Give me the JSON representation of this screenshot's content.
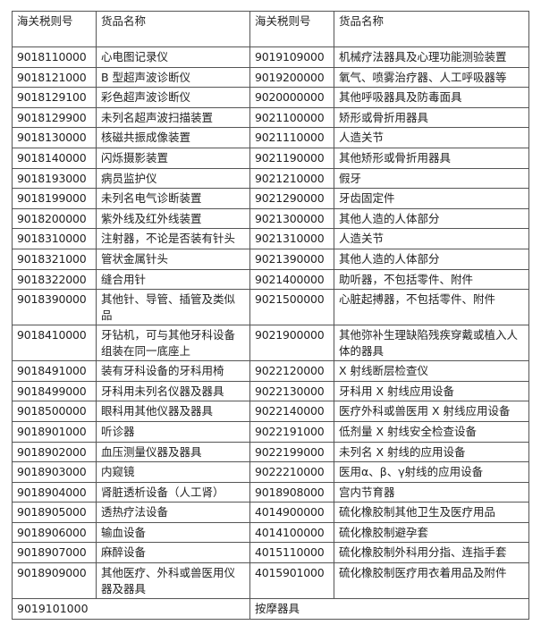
{
  "headers": [
    "海关税则号",
    "货品名称",
    "海关税则号",
    "货品名称"
  ],
  "rows": [
    [
      "9018110000",
      "心电图记录仪",
      "9019109000",
      "机械疗法器具及心理功能测验装置"
    ],
    [
      "9018121000",
      "B 型超声波诊断仪",
      "9019200000",
      "氧气、喷雾治疗器、人工呼吸器等"
    ],
    [
      "9018129100",
      "彩色超声波诊断仪",
      "9020000000",
      "其他呼吸器具及防毒面具"
    ],
    [
      "9018129900",
      "未列名超声波扫描装置",
      "9021100000",
      "矫形或骨折用器具"
    ],
    [
      "9018130000",
      "核磁共振成像装置",
      "9021110000",
      "人造关节"
    ],
    [
      "9018140000",
      "闪烁摄影装置",
      "9021190000",
      "其他矫形或骨折用器具"
    ],
    [
      "9018193000",
      "病员监护仪",
      "9021210000",
      "假牙"
    ],
    [
      "9018199000",
      "未列名电气诊断装置",
      "9021290000",
      "牙齿固定件"
    ],
    [
      "9018200000",
      "紫外线及红外线装置",
      "9021300000",
      "其他人造的人体部分"
    ],
    [
      "9018310000",
      "注射器，不论是否装有针头",
      "9021310000",
      "人造关节"
    ],
    [
      "9018321000",
      "管状金属针头",
      "9021390000",
      "其他人造的人体部分"
    ],
    [
      "9018322000",
      "缝合用针",
      "9021400000",
      "助听器，不包括零件、附件"
    ],
    [
      "9018390000",
      "其他针、导管、插管及类似品",
      "9021500000",
      "心脏起搏器，不包括零件、附件"
    ],
    [
      "9018410000",
      "牙钻机，可与其他牙科设备组装在同一底座上",
      "9021900000",
      "其他弥补生理缺陷残疾穿戴或植入人体的器具"
    ],
    [
      "9018491000",
      "装有牙科设备的牙科用椅",
      "9022120000",
      "X 射线断层检查仪"
    ],
    [
      "9018499000",
      "牙科用未列名仪器及器具",
      "9022130000",
      "牙科用 X 射线应用设备"
    ],
    [
      "9018500000",
      "眼科用其他仪器及器具",
      "9022140000",
      "医疗外科或兽医用 X 射线应用设备"
    ],
    [
      "9018901000",
      "听诊器",
      "9022191000",
      "低剂量 X 射线安全检查设备"
    ],
    [
      "9018902000",
      "血压测量仪器及器具",
      "9022199000",
      "未列名 X 射线的应用设备"
    ],
    [
      "9018903000",
      "内窥镜",
      "9022210000",
      "医用α、β、γ射线的应用设备"
    ],
    [
      "9018904000",
      "肾脏透析设备（人工肾）",
      "9018908000",
      "宫内节育器"
    ],
    [
      "9018905000",
      "透热疗法设备",
      "4014900000",
      "硫化橡胶制其他卫生及医疗用品"
    ],
    [
      "9018906000",
      "输血设备",
      "4014100000",
      "硫化橡胶制避孕套"
    ],
    [
      "9018907000",
      "麻醉设备",
      "4015110000",
      "硫化橡胶制外科用分指、连指手套"
    ],
    [
      "9018909000",
      "其他医疗、外科或兽医用仪器及器具",
      "4015901000",
      "硫化橡胶制医疗用衣着用品及附件"
    ]
  ],
  "last_row": [
    "9019101000",
    "按摩器具"
  ]
}
